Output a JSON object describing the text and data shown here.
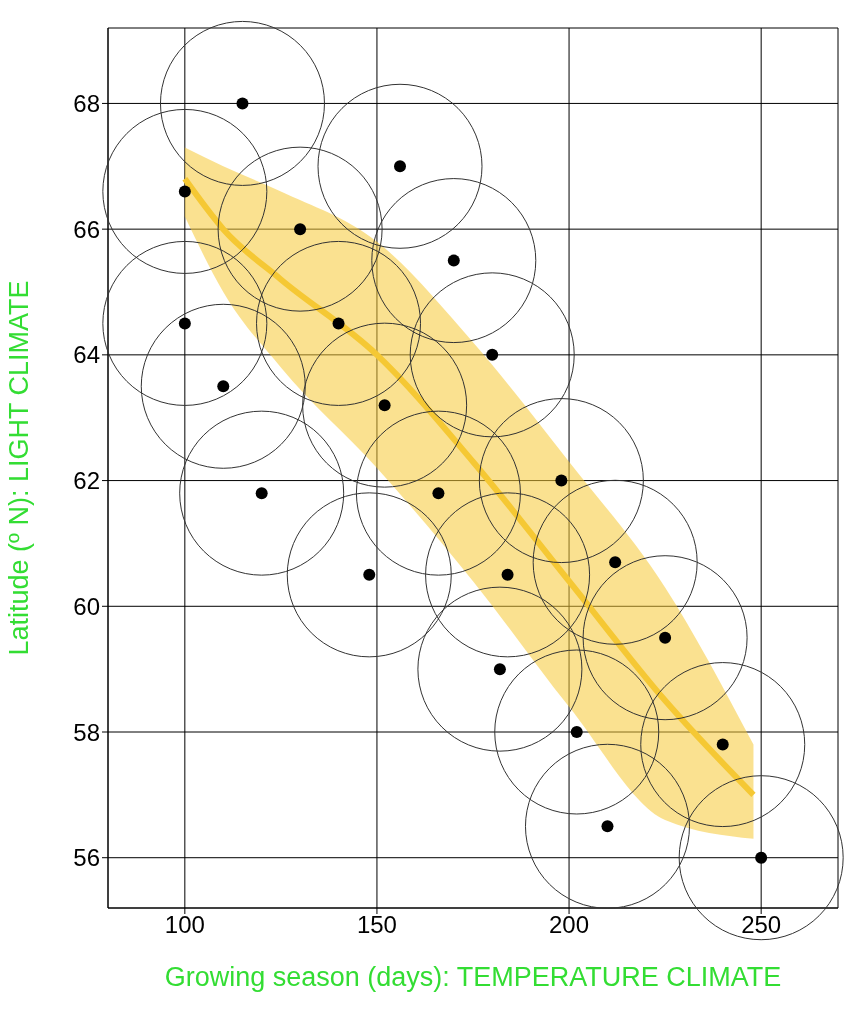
{
  "chart_data": {
    "type": "scatter",
    "xlabel": "Growing season (days): TEMPERATURE CLIMATE",
    "ylabel": "Latitude (º N): LIGHT CLIMATE",
    "series": [
      {
        "type": "line",
        "marker": "none",
        "color": "#f5c834",
        "x": [
          100,
          110,
          125,
          150,
          175,
          200,
          225,
          248
        ],
        "values": [
          66.8,
          66.0,
          65.2,
          64.0,
          62.3,
          60.4,
          58.5,
          57.0
        ],
        "lower": [
          66.2,
          65.0,
          63.8,
          62.2,
          60.4,
          58.4,
          56.6,
          56.3
        ],
        "upper": [
          67.3,
          67.0,
          66.6,
          65.8,
          64.2,
          62.3,
          60.3,
          57.8
        ]
      },
      {
        "color": "#000000",
        "x": [
          115,
          100,
          130,
          156,
          170,
          140,
          100,
          110,
          152,
          180,
          120,
          166,
          148,
          198,
          184,
          212,
          182,
          225,
          202,
          240,
          210,
          250
        ],
        "values": [
          68,
          66.6,
          66,
          67,
          65.5,
          64.5,
          64.5,
          63.5,
          63.2,
          64,
          61.8,
          61.8,
          60.5,
          62,
          60.5,
          60.7,
          59,
          59.5,
          58,
          57.8,
          56.5,
          56
        ]
      }
    ],
    "marker": "circle",
    "xlim": [
      80,
      270
    ],
    "xticks": [
      100,
      150,
      200,
      250
    ],
    "ylim": [
      55.2,
      69.2
    ],
    "yticks": [
      56,
      58,
      60,
      62,
      64,
      66,
      68
    ],
    "grid": true
  }
}
